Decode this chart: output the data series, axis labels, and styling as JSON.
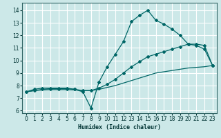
{
  "xlabel": "Humidex (Indice chaleur)",
  "bg_color": "#cce8e8",
  "grid_color": "#ffffff",
  "line_color": "#006666",
  "xlim": [
    -0.5,
    23.5
  ],
  "ylim": [
    5.8,
    14.6
  ],
  "yticks": [
    6,
    7,
    8,
    9,
    10,
    11,
    12,
    13,
    14
  ],
  "xticks": [
    0,
    1,
    2,
    3,
    4,
    5,
    6,
    7,
    8,
    9,
    10,
    11,
    12,
    13,
    14,
    15,
    16,
    17,
    18,
    19,
    20,
    21,
    22,
    23
  ],
  "line1_x": [
    0,
    1,
    2,
    3,
    4,
    5,
    6,
    7,
    8,
    9,
    10,
    11,
    12,
    13,
    14,
    15,
    16,
    17,
    18,
    19,
    20,
    21,
    22,
    23
  ],
  "line1_y": [
    7.5,
    7.7,
    7.8,
    7.8,
    7.8,
    7.8,
    7.7,
    7.5,
    6.2,
    8.3,
    9.5,
    10.5,
    11.5,
    13.1,
    13.6,
    14.0,
    13.2,
    12.9,
    12.5,
    12.0,
    11.3,
    11.2,
    10.9,
    9.6
  ],
  "line2_x": [
    0,
    1,
    2,
    3,
    4,
    5,
    6,
    7,
    8,
    9,
    10,
    11,
    12,
    13,
    14,
    15,
    16,
    17,
    18,
    19,
    20,
    21,
    22,
    23
  ],
  "line2_y": [
    7.5,
    7.6,
    7.7,
    7.75,
    7.75,
    7.75,
    7.7,
    7.6,
    7.6,
    7.8,
    8.1,
    8.5,
    9.0,
    9.5,
    9.9,
    10.3,
    10.5,
    10.7,
    10.9,
    11.1,
    11.3,
    11.3,
    11.2,
    9.6
  ],
  "line3_x": [
    0,
    1,
    2,
    3,
    4,
    5,
    6,
    7,
    8,
    9,
    10,
    11,
    12,
    13,
    14,
    15,
    16,
    17,
    18,
    19,
    20,
    21,
    22,
    23
  ],
  "line3_y": [
    7.5,
    7.6,
    7.65,
    7.68,
    7.68,
    7.68,
    7.65,
    7.6,
    7.6,
    7.7,
    7.85,
    8.0,
    8.2,
    8.4,
    8.6,
    8.8,
    9.0,
    9.1,
    9.2,
    9.3,
    9.4,
    9.45,
    9.5,
    9.6
  ]
}
